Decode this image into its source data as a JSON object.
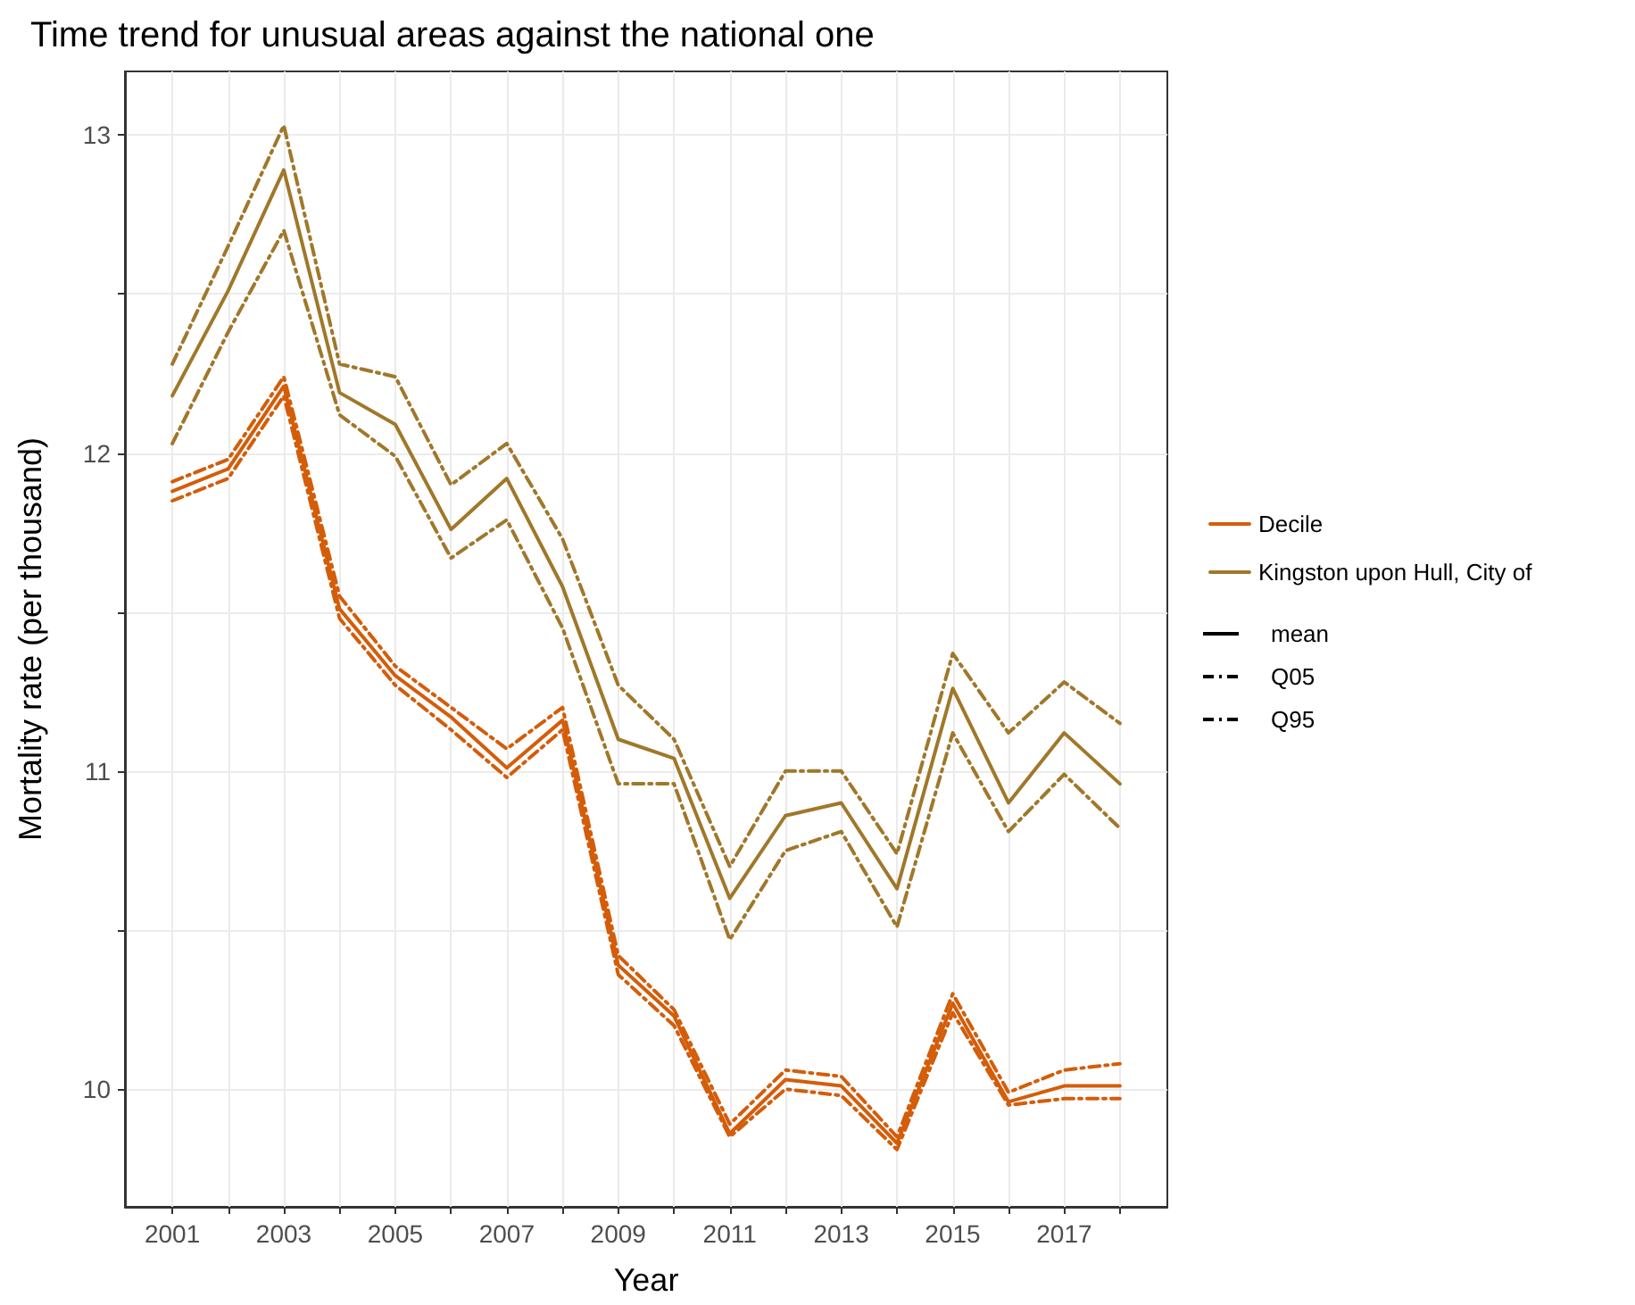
{
  "chart_data": {
    "type": "line",
    "title": "Time trend for unusual areas against the national one",
    "xlabel": "Year",
    "ylabel": "Mortality rate (per thousand)",
    "x": [
      2001,
      2002,
      2003,
      2004,
      2005,
      2006,
      2007,
      2008,
      2009,
      2010,
      2011,
      2012,
      2013,
      2014,
      2015,
      2016,
      2017,
      2018
    ],
    "series": [
      {
        "name": "Decile",
        "color": "#d45d0a",
        "line_style": "solid",
        "values": [
          11.88,
          11.95,
          12.21,
          11.51,
          11.3,
          11.17,
          11.01,
          11.16,
          10.39,
          10.23,
          9.86,
          10.03,
          10.01,
          9.83,
          10.27,
          9.96,
          10.01,
          10.01
        ]
      },
      {
        "color": "#d45d0a",
        "line_style": "dashed",
        "values": [
          11.85,
          11.92,
          12.18,
          11.48,
          11.27,
          11.13,
          10.98,
          11.13,
          10.36,
          10.2,
          9.85,
          10.0,
          9.98,
          9.81,
          10.24,
          9.95,
          9.97,
          9.97
        ]
      },
      {
        "color": "#d45d0a",
        "line_style": "dashed",
        "values": [
          11.91,
          11.98,
          12.24,
          11.55,
          11.33,
          11.2,
          11.07,
          11.2,
          10.42,
          10.25,
          9.89,
          10.06,
          10.04,
          9.85,
          10.3,
          9.99,
          10.06,
          10.08
        ]
      },
      {
        "name": "Kingston upon Hull, City of",
        "color": "#a0782a",
        "line_style": "solid",
        "values": [
          12.18,
          12.51,
          12.89,
          12.19,
          12.09,
          11.76,
          11.92,
          11.58,
          11.1,
          11.04,
          10.6,
          10.86,
          10.9,
          10.63,
          11.26,
          10.9,
          11.12,
          10.96
        ]
      },
      {
        "color": "#a0782a",
        "line_style": "dashed",
        "values": [
          12.03,
          12.38,
          12.7,
          12.12,
          11.99,
          11.67,
          11.79,
          11.45,
          10.96,
          10.96,
          10.47,
          10.75,
          10.81,
          10.51,
          11.12,
          10.81,
          10.99,
          10.82
        ]
      },
      {
        "color": "#a0782a",
        "line_style": "dashed",
        "values": [
          12.28,
          12.65,
          13.03,
          12.28,
          12.24,
          11.9,
          12.03,
          11.73,
          11.27,
          11.1,
          10.7,
          11.0,
          11.0,
          10.74,
          11.37,
          11.12,
          11.28,
          11.15
        ]
      }
    ],
    "annotations": [
      "mean",
      "Q05",
      "Q95"
    ],
    "xlim": [
      2000.15,
      2018.85
    ],
    "xticks": [
      2001,
      {
        "value": 2002,
        "label": null
      },
      2003,
      {
        "value": 2004,
        "label": null
      },
      2005,
      {
        "value": 2006,
        "label": null
      },
      2007,
      {
        "value": 2008,
        "label": null
      },
      2009,
      {
        "value": 2010,
        "label": null
      },
      2011,
      {
        "value": 2012,
        "label": null
      },
      2013,
      {
        "value": 2014,
        "label": null
      },
      2015,
      {
        "value": 2016,
        "label": null
      },
      2017,
      {
        "value": 2018,
        "label": null
      }
    ],
    "ylim": [
      9.63,
      13.2
    ],
    "yticks": [
      10,
      {
        "value": 10.5,
        "label": null
      },
      11,
      {
        "value": 11.5,
        "label": null
      },
      12,
      {
        "value": 12.5,
        "label": null
      },
      13
    ],
    "grid": true,
    "legend": "right"
  }
}
